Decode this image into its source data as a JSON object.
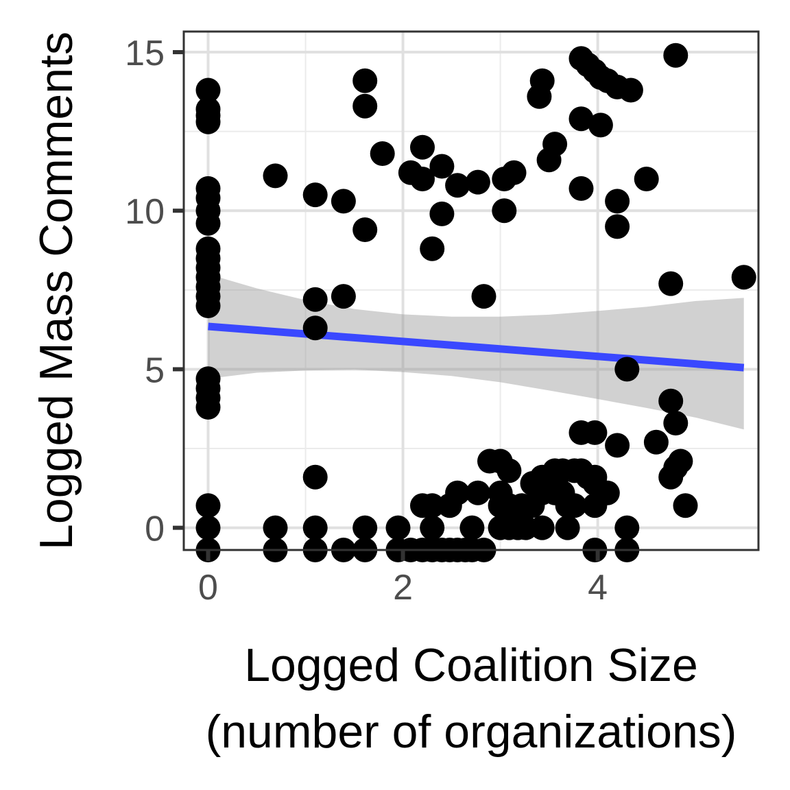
{
  "chart_data": {
    "type": "scatter",
    "xlabel_lines": [
      "Logged Coalition Size",
      "(number of organizations)"
    ],
    "ylabel": "Logged Mass Comments",
    "xlim": [
      -0.25,
      5.65
    ],
    "ylim": [
      -0.7,
      15.65
    ],
    "x_ticks": [
      0,
      2,
      4
    ],
    "x_tick_labels": [
      "0",
      "2",
      "4"
    ],
    "y_ticks": [
      0,
      5,
      10,
      15
    ],
    "y_tick_labels": [
      "0",
      "5",
      "10",
      "15"
    ],
    "grid": true,
    "point_color": "#000000",
    "points": [
      [
        0,
        13.8
      ],
      [
        0,
        13.2
      ],
      [
        0,
        13.0
      ],
      [
        0,
        12.8
      ],
      [
        0,
        10.7
      ],
      [
        0,
        10.4
      ],
      [
        0,
        10.0
      ],
      [
        0,
        9.6
      ],
      [
        0,
        8.8
      ],
      [
        0,
        8.5
      ],
      [
        0,
        8.2
      ],
      [
        0,
        7.9
      ],
      [
        0,
        7.6
      ],
      [
        0,
        7.3
      ],
      [
        0,
        7.0
      ],
      [
        0,
        4.7
      ],
      [
        0,
        4.4
      ],
      [
        0,
        4.1
      ],
      [
        0,
        3.8
      ],
      [
        0,
        0.7
      ],
      [
        0,
        0
      ],
      [
        0,
        -0.7
      ],
      [
        0.69,
        11.1
      ],
      [
        0.69,
        0
      ],
      [
        0.69,
        -0.7
      ],
      [
        1.1,
        10.5
      ],
      [
        1.1,
        7.2
      ],
      [
        1.1,
        6.3
      ],
      [
        1.1,
        1.6
      ],
      [
        1.1,
        0
      ],
      [
        1.1,
        -0.7
      ],
      [
        1.39,
        10.3
      ],
      [
        1.39,
        7.3
      ],
      [
        1.39,
        -0.7
      ],
      [
        1.61,
        14.1
      ],
      [
        1.61,
        13.3
      ],
      [
        1.61,
        9.4
      ],
      [
        1.61,
        0
      ],
      [
        1.61,
        -0.7
      ],
      [
        1.79,
        11.8
      ],
      [
        1.95,
        0
      ],
      [
        1.95,
        -0.7
      ],
      [
        2.08,
        11.2
      ],
      [
        2.08,
        -0.7
      ],
      [
        2.2,
        12.0
      ],
      [
        2.2,
        11.0
      ],
      [
        2.2,
        0.7
      ],
      [
        2.2,
        -0.7
      ],
      [
        2.3,
        8.8
      ],
      [
        2.3,
        0.7
      ],
      [
        2.3,
        0
      ],
      [
        2.3,
        -0.7
      ],
      [
        2.4,
        11.4
      ],
      [
        2.4,
        9.9
      ],
      [
        2.4,
        -0.7
      ],
      [
        2.48,
        0.7
      ],
      [
        2.48,
        -0.7
      ],
      [
        2.56,
        10.8
      ],
      [
        2.56,
        1.1
      ],
      [
        2.56,
        -0.7
      ],
      [
        2.64,
        -0.7
      ],
      [
        2.71,
        0
      ],
      [
        2.71,
        -0.7
      ],
      [
        2.77,
        10.9
      ],
      [
        2.77,
        1.1
      ],
      [
        2.83,
        7.3
      ],
      [
        2.83,
        -0.7
      ],
      [
        2.89,
        2.1
      ],
      [
        3.0,
        2.1
      ],
      [
        3.0,
        1.1
      ],
      [
        3.0,
        0.7
      ],
      [
        3.0,
        0
      ],
      [
        3.04,
        10.0
      ],
      [
        3.04,
        11.0
      ],
      [
        3.09,
        1.8
      ],
      [
        3.09,
        0.7
      ],
      [
        3.09,
        0
      ],
      [
        3.14,
        11.2
      ],
      [
        3.14,
        0.4
      ],
      [
        3.18,
        0
      ],
      [
        3.22,
        0.7
      ],
      [
        3.26,
        0
      ],
      [
        3.33,
        0.7
      ],
      [
        3.33,
        1.4
      ],
      [
        3.4,
        13.6
      ],
      [
        3.43,
        14.1
      ],
      [
        3.43,
        1.6
      ],
      [
        3.43,
        1.1
      ],
      [
        3.43,
        0
      ],
      [
        3.5,
        11.6
      ],
      [
        3.5,
        1.4
      ],
      [
        3.56,
        12.1
      ],
      [
        3.56,
        1.8
      ],
      [
        3.56,
        1.1
      ],
      [
        3.64,
        1.8
      ],
      [
        3.64,
        1.1
      ],
      [
        3.69,
        0.7
      ],
      [
        3.69,
        0
      ],
      [
        3.76,
        1.8
      ],
      [
        3.76,
        0.7
      ],
      [
        3.83,
        14.8
      ],
      [
        3.83,
        12.9
      ],
      [
        3.83,
        10.7
      ],
      [
        3.83,
        3.0
      ],
      [
        3.83,
        1.8
      ],
      [
        3.9,
        14.6
      ],
      [
        3.9,
        1.6
      ],
      [
        3.97,
        14.4
      ],
      [
        3.97,
        3.0
      ],
      [
        3.97,
        1.6
      ],
      [
        3.97,
        1.4
      ],
      [
        3.97,
        0.7
      ],
      [
        3.97,
        -0.7
      ],
      [
        4.03,
        12.7
      ],
      [
        4.03,
        14.2
      ],
      [
        4.1,
        14.1
      ],
      [
        4.1,
        1.1
      ],
      [
        4.2,
        13.9
      ],
      [
        4.2,
        10.3
      ],
      [
        4.2,
        9.5
      ],
      [
        4.2,
        2.6
      ],
      [
        4.3,
        5.0
      ],
      [
        4.3,
        0
      ],
      [
        4.3,
        -0.7
      ],
      [
        4.34,
        13.8
      ],
      [
        4.5,
        11.0
      ],
      [
        4.6,
        2.7
      ],
      [
        4.75,
        7.7
      ],
      [
        4.75,
        4.0
      ],
      [
        4.75,
        1.6
      ],
      [
        4.8,
        14.9
      ],
      [
        4.8,
        3.3
      ],
      [
        4.8,
        1.9
      ],
      [
        4.85,
        2.1
      ],
      [
        4.9,
        0.7
      ],
      [
        5.5,
        7.9
      ]
    ],
    "trend_line": {
      "color": "#3a48ff",
      "x": [
        0,
        5.5
      ],
      "y": [
        6.35,
        5.05
      ]
    },
    "confidence_band": {
      "color": "#999999",
      "x": [
        0,
        0.5,
        1.0,
        1.5,
        2.0,
        2.5,
        3.0,
        3.5,
        4.0,
        4.5,
        5.0,
        5.5
      ],
      "upper": [
        8.0,
        7.55,
        7.18,
        6.9,
        6.73,
        6.66,
        6.66,
        6.72,
        6.84,
        6.97,
        7.15,
        7.25
      ],
      "lower": [
        4.7,
        4.89,
        4.96,
        4.99,
        4.91,
        4.79,
        4.59,
        4.33,
        4.06,
        3.78,
        3.48,
        3.1
      ]
    }
  }
}
